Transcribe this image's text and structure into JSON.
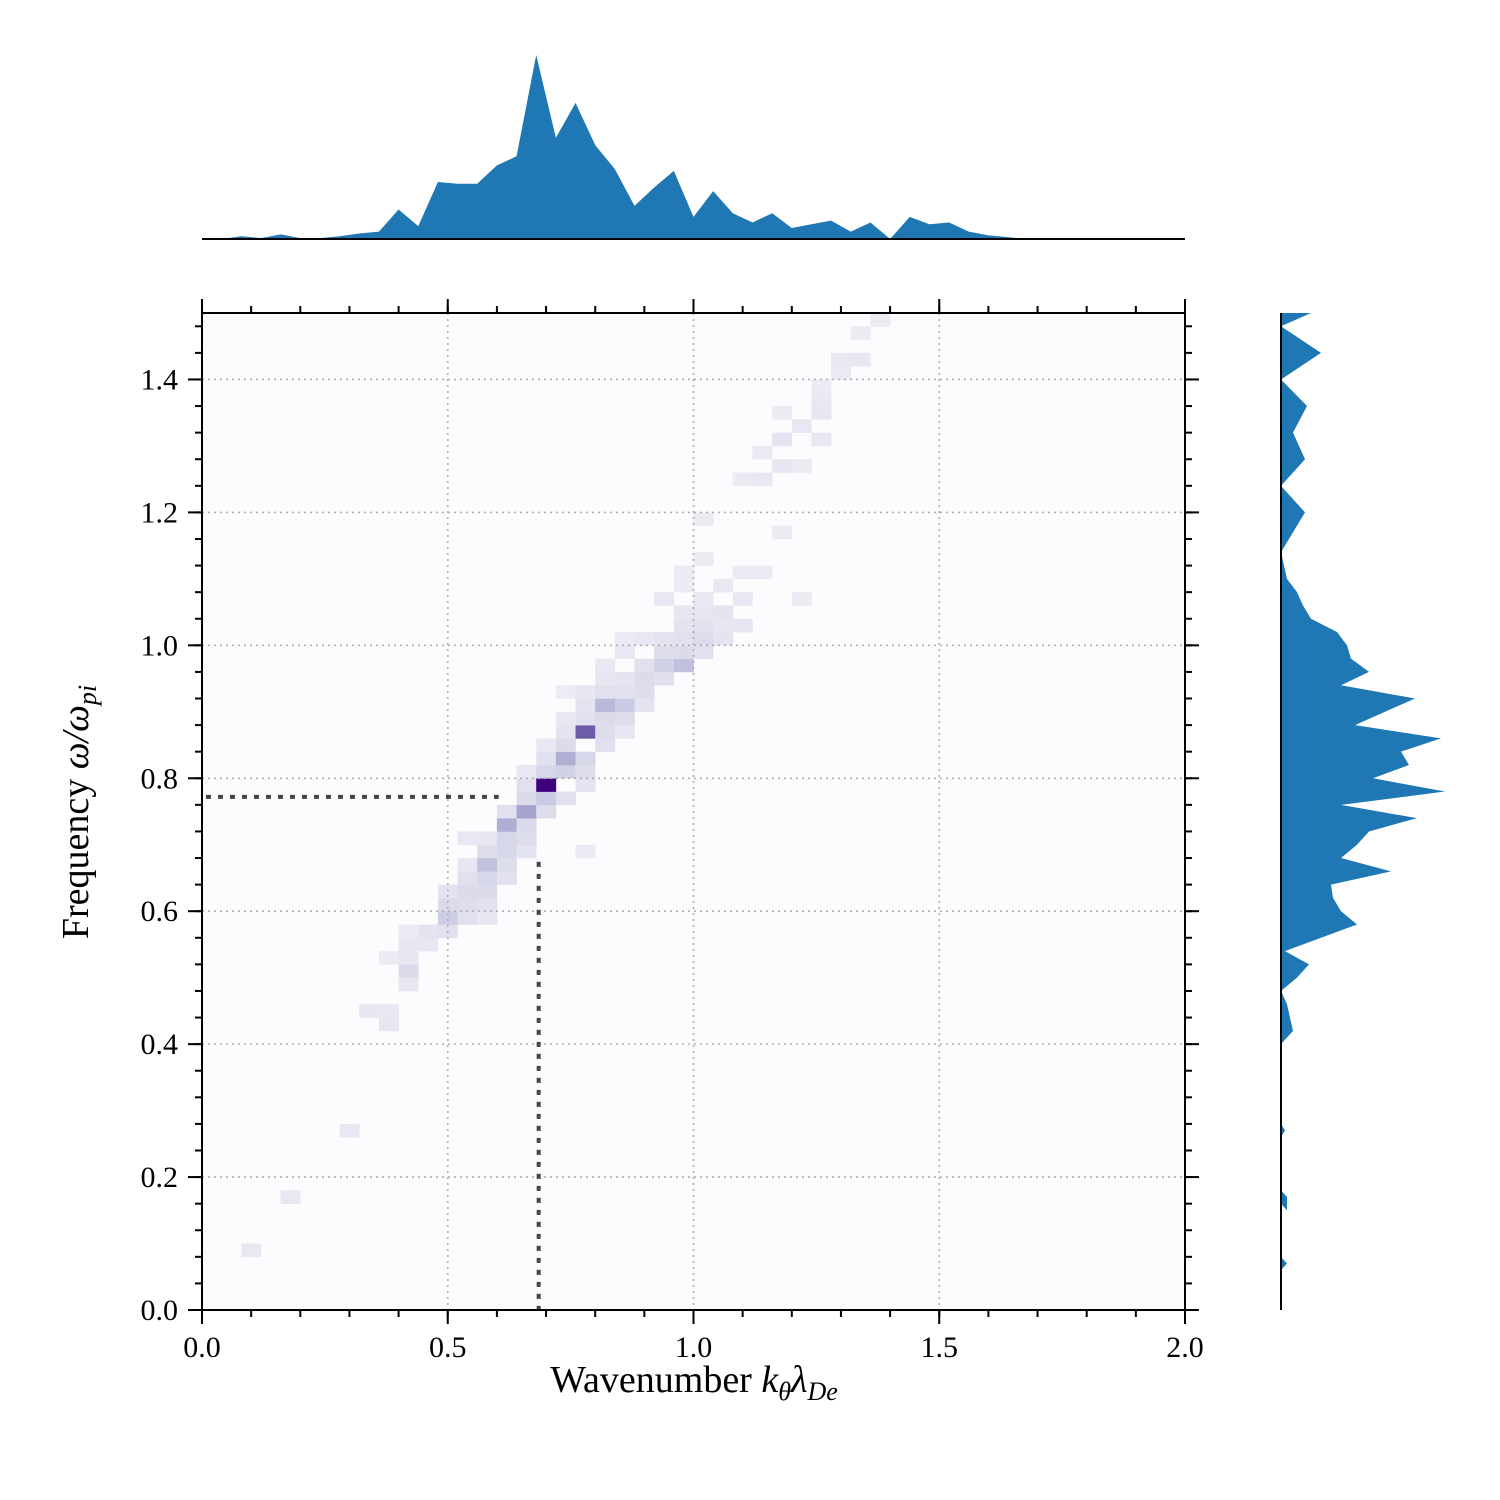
{
  "chart_data": {
    "type": "heatmap",
    "x_label": {
      "main": "Wavenumber ",
      "symbol": "k",
      "sub1": "θ",
      "sym2": "λ",
      "sub2": "De"
    },
    "y_label": {
      "main": "Frequency ",
      "symbol": "ω/ω",
      "sub": "pi"
    },
    "xlim": [
      0.0,
      2.0
    ],
    "ylim": [
      0.0,
      1.5
    ],
    "x_ticks": [
      "0.0",
      "0.5",
      "1.0",
      "1.5",
      "2.0"
    ],
    "y_ticks": [
      "0.0",
      "0.2",
      "0.4",
      "0.6",
      "0.8",
      "1.0",
      "1.2",
      "1.4"
    ],
    "grid": true,
    "colormap": "Purples",
    "colors": {
      "marginal": "#1f77b4",
      "reference_line": "#444444",
      "grid": "#b0b0b0"
    },
    "reference_point": {
      "x": 0.685,
      "y": 0.772
    },
    "bin_size": {
      "dx": 0.04,
      "dy": 0.02
    },
    "cells": [
      [
        0.08,
        0.08,
        0.08
      ],
      [
        0.16,
        0.16,
        0.08
      ],
      [
        0.28,
        0.26,
        0.08
      ],
      [
        0.32,
        0.44,
        0.1
      ],
      [
        0.36,
        0.42,
        0.1
      ],
      [
        0.36,
        0.44,
        0.08
      ],
      [
        0.36,
        0.52,
        0.06
      ],
      [
        0.4,
        0.5,
        0.2
      ],
      [
        0.4,
        0.48,
        0.1
      ],
      [
        0.4,
        0.52,
        0.1
      ],
      [
        0.4,
        0.54,
        0.1
      ],
      [
        0.4,
        0.56,
        0.06
      ],
      [
        0.44,
        0.54,
        0.1
      ],
      [
        0.44,
        0.56,
        0.12
      ],
      [
        0.48,
        0.56,
        0.15
      ],
      [
        0.48,
        0.58,
        0.28
      ],
      [
        0.48,
        0.6,
        0.2
      ],
      [
        0.48,
        0.62,
        0.12
      ],
      [
        0.52,
        0.58,
        0.15
      ],
      [
        0.52,
        0.6,
        0.18
      ],
      [
        0.52,
        0.62,
        0.2
      ],
      [
        0.52,
        0.64,
        0.15
      ],
      [
        0.52,
        0.66,
        0.1
      ],
      [
        0.52,
        0.7,
        0.08
      ],
      [
        0.56,
        0.58,
        0.1
      ],
      [
        0.56,
        0.6,
        0.14
      ],
      [
        0.56,
        0.62,
        0.2
      ],
      [
        0.56,
        0.64,
        0.22
      ],
      [
        0.56,
        0.66,
        0.35
      ],
      [
        0.56,
        0.68,
        0.18
      ],
      [
        0.56,
        0.7,
        0.1
      ],
      [
        0.6,
        0.64,
        0.14
      ],
      [
        0.6,
        0.66,
        0.18
      ],
      [
        0.6,
        0.68,
        0.2
      ],
      [
        0.6,
        0.7,
        0.22
      ],
      [
        0.6,
        0.72,
        0.45
      ],
      [
        0.6,
        0.74,
        0.15
      ],
      [
        0.6,
        0.68,
        0.22
      ],
      [
        0.64,
        0.68,
        0.12
      ],
      [
        0.64,
        0.7,
        0.18
      ],
      [
        0.64,
        0.72,
        0.2
      ],
      [
        0.64,
        0.74,
        0.5
      ],
      [
        0.64,
        0.76,
        0.2
      ],
      [
        0.64,
        0.78,
        0.15
      ],
      [
        0.64,
        0.8,
        0.08
      ],
      [
        0.68,
        0.74,
        0.18
      ],
      [
        0.68,
        0.76,
        0.3
      ],
      [
        0.68,
        0.78,
        1.0
      ],
      [
        0.68,
        0.8,
        0.22
      ],
      [
        0.68,
        0.82,
        0.15
      ],
      [
        0.68,
        0.84,
        0.08
      ],
      [
        0.72,
        0.76,
        0.15
      ],
      [
        0.72,
        0.8,
        0.25
      ],
      [
        0.72,
        0.82,
        0.45
      ],
      [
        0.72,
        0.84,
        0.2
      ],
      [
        0.72,
        0.86,
        0.12
      ],
      [
        0.72,
        0.88,
        0.08
      ],
      [
        0.72,
        0.92,
        0.05
      ],
      [
        0.76,
        0.78,
        0.12
      ],
      [
        0.76,
        0.8,
        0.18
      ],
      [
        0.76,
        0.82,
        0.22
      ],
      [
        0.76,
        0.86,
        0.75
      ],
      [
        0.76,
        0.88,
        0.15
      ],
      [
        0.76,
        0.9,
        0.12
      ],
      [
        0.76,
        0.92,
        0.1
      ],
      [
        0.76,
        0.68,
        0.06
      ],
      [
        0.8,
        0.84,
        0.15
      ],
      [
        0.8,
        0.86,
        0.18
      ],
      [
        0.8,
        0.88,
        0.2
      ],
      [
        0.8,
        0.9,
        0.4
      ],
      [
        0.8,
        0.92,
        0.15
      ],
      [
        0.8,
        0.94,
        0.1
      ],
      [
        0.8,
        0.96,
        0.08
      ],
      [
        0.84,
        0.86,
        0.1
      ],
      [
        0.84,
        0.88,
        0.18
      ],
      [
        0.84,
        0.9,
        0.3
      ],
      [
        0.84,
        0.92,
        0.15
      ],
      [
        0.84,
        0.94,
        0.12
      ],
      [
        0.84,
        0.98,
        0.08
      ],
      [
        0.84,
        1.0,
        0.06
      ],
      [
        0.88,
        0.9,
        0.12
      ],
      [
        0.88,
        0.92,
        0.18
      ],
      [
        0.88,
        0.94,
        0.2
      ],
      [
        0.88,
        0.96,
        0.15
      ],
      [
        0.88,
        1.0,
        0.08
      ],
      [
        0.92,
        0.94,
        0.15
      ],
      [
        0.92,
        0.96,
        0.25
      ],
      [
        0.92,
        0.98,
        0.18
      ],
      [
        0.92,
        1.0,
        0.12
      ],
      [
        0.92,
        1.06,
        0.08
      ],
      [
        0.96,
        0.96,
        0.35
      ],
      [
        0.96,
        0.98,
        0.2
      ],
      [
        0.96,
        1.0,
        0.15
      ],
      [
        0.96,
        1.02,
        0.12
      ],
      [
        0.96,
        1.04,
        0.1
      ],
      [
        0.96,
        1.08,
        0.06
      ],
      [
        0.96,
        1.1,
        0.06
      ],
      [
        1.0,
        0.98,
        0.15
      ],
      [
        1.0,
        1.0,
        0.2
      ],
      [
        1.0,
        1.02,
        0.15
      ],
      [
        1.0,
        1.04,
        0.1
      ],
      [
        1.0,
        1.06,
        0.08
      ],
      [
        1.0,
        1.12,
        0.06
      ],
      [
        1.0,
        1.18,
        0.06
      ],
      [
        1.04,
        1.0,
        0.12
      ],
      [
        1.04,
        1.02,
        0.1
      ],
      [
        1.04,
        1.04,
        0.12
      ],
      [
        1.04,
        1.08,
        0.08
      ],
      [
        1.08,
        1.02,
        0.1
      ],
      [
        1.08,
        1.06,
        0.08
      ],
      [
        1.08,
        1.1,
        0.06
      ],
      [
        1.08,
        1.24,
        0.06
      ],
      [
        1.12,
        1.1,
        0.06
      ],
      [
        1.12,
        1.24,
        0.08
      ],
      [
        1.12,
        1.28,
        0.06
      ],
      [
        1.16,
        1.16,
        0.06
      ],
      [
        1.16,
        1.26,
        0.1
      ],
      [
        1.16,
        1.3,
        0.12
      ],
      [
        1.16,
        1.34,
        0.06
      ],
      [
        1.2,
        1.32,
        0.08
      ],
      [
        1.2,
        1.26,
        0.06
      ],
      [
        1.2,
        1.06,
        0.06
      ],
      [
        1.24,
        1.3,
        0.08
      ],
      [
        1.24,
        1.34,
        0.1
      ],
      [
        1.24,
        1.36,
        0.08
      ],
      [
        1.24,
        1.38,
        0.06
      ],
      [
        1.28,
        1.4,
        0.06
      ],
      [
        1.28,
        1.42,
        0.08
      ],
      [
        1.32,
        1.42,
        0.1
      ],
      [
        1.32,
        1.46,
        0.06
      ],
      [
        1.36,
        1.48,
        0.06
      ]
    ],
    "marginal_x": {
      "x": [
        0.0,
        0.04,
        0.08,
        0.12,
        0.16,
        0.2,
        0.24,
        0.28,
        0.32,
        0.36,
        0.4,
        0.44,
        0.48,
        0.52,
        0.56,
        0.6,
        0.64,
        0.68,
        0.72,
        0.76,
        0.8,
        0.84,
        0.88,
        0.92,
        0.96,
        1.0,
        1.04,
        1.08,
        1.12,
        1.16,
        1.2,
        1.24,
        1.28,
        1.32,
        1.36,
        1.4,
        1.44,
        1.48,
        1.52,
        1.56,
        1.6,
        1.64,
        1.68,
        1.72,
        2.0
      ],
      "density": [
        0.0,
        0.0,
        0.015,
        0.005,
        0.025,
        0.005,
        0.005,
        0.015,
        0.03,
        0.04,
        0.16,
        0.07,
        0.31,
        0.3,
        0.3,
        0.4,
        0.45,
        1.0,
        0.55,
        0.74,
        0.51,
        0.38,
        0.18,
        0.28,
        0.37,
        0.12,
        0.26,
        0.14,
        0.09,
        0.14,
        0.06,
        0.08,
        0.1,
        0.04,
        0.09,
        0.0,
        0.12,
        0.08,
        0.09,
        0.04,
        0.02,
        0.01,
        0.0,
        0.0,
        0.0
      ]
    },
    "marginal_y": {
      "y": [
        0.0,
        0.06,
        0.07,
        0.08,
        0.09,
        0.16,
        0.15,
        0.17,
        0.18,
        0.26,
        0.27,
        0.28,
        0.4,
        0.42,
        0.46,
        0.48,
        0.5,
        0.52,
        0.54,
        0.56,
        0.58,
        0.6,
        0.62,
        0.64,
        0.66,
        0.68,
        0.7,
        0.72,
        0.74,
        0.76,
        0.78,
        0.8,
        0.82,
        0.84,
        0.86,
        0.88,
        0.9,
        0.92,
        0.94,
        0.96,
        0.98,
        1.0,
        1.02,
        1.04,
        1.06,
        1.08,
        1.1,
        1.14,
        1.2,
        1.24,
        1.28,
        1.32,
        1.36,
        1.4,
        1.44,
        1.48,
        1.5
      ],
      "density": [
        0.0,
        0.0,
        0.03,
        0.0,
        0.0,
        0.0,
        0.03,
        0.03,
        0.0,
        0.0,
        0.02,
        0.0,
        0.0,
        0.06,
        0.03,
        0.0,
        0.08,
        0.14,
        0.02,
        0.2,
        0.38,
        0.3,
        0.26,
        0.25,
        0.55,
        0.3,
        0.38,
        0.44,
        0.68,
        0.3,
        0.82,
        0.46,
        0.64,
        0.6,
        0.8,
        0.37,
        0.52,
        0.67,
        0.3,
        0.44,
        0.35,
        0.33,
        0.28,
        0.15,
        0.11,
        0.08,
        0.03,
        0.0,
        0.12,
        0.0,
        0.12,
        0.06,
        0.13,
        0.0,
        0.2,
        0.0,
        0.15
      ]
    }
  }
}
